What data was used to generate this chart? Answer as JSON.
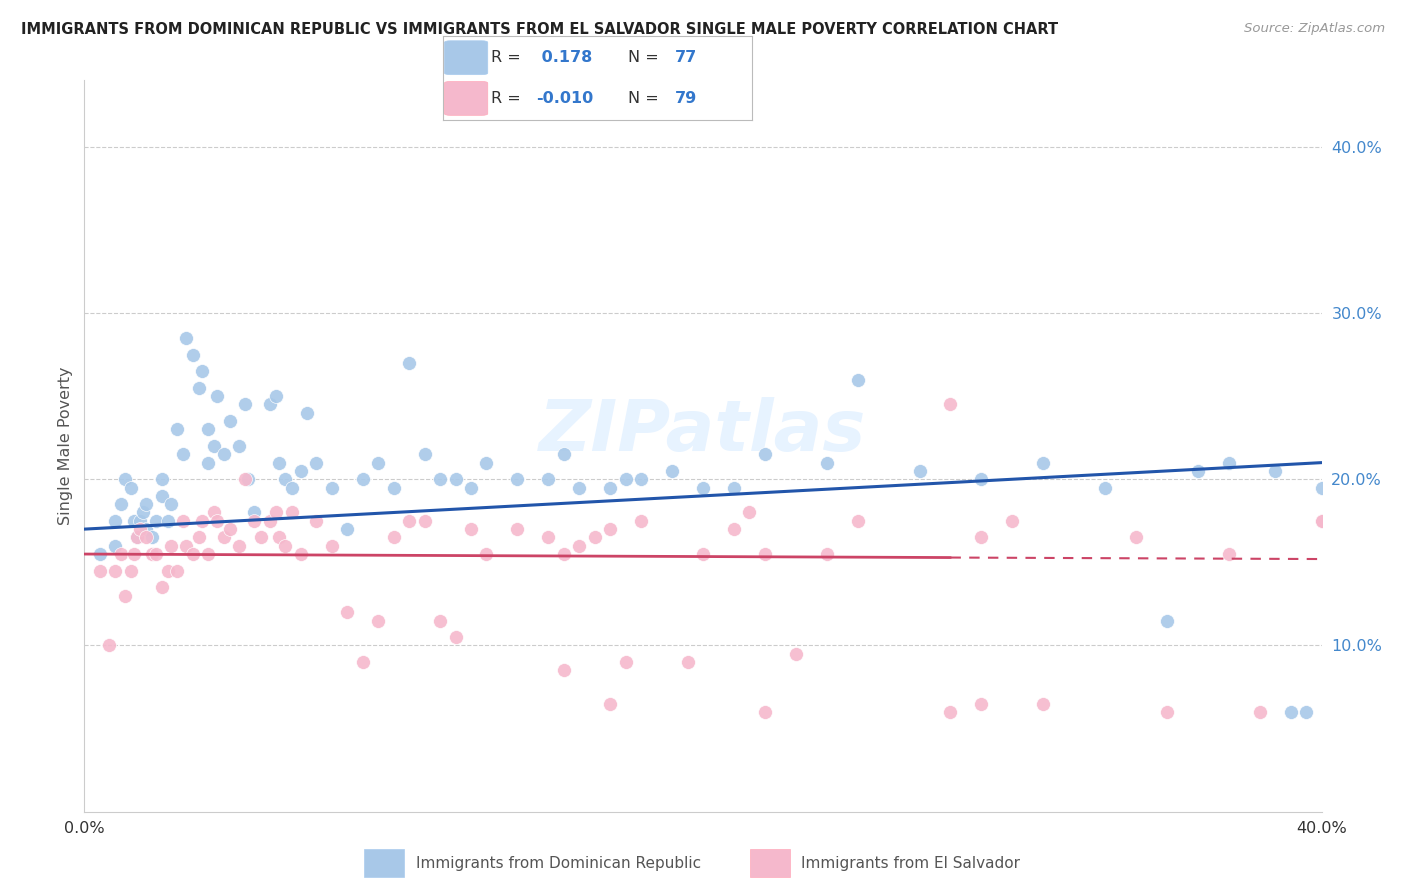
{
  "title": "IMMIGRANTS FROM DOMINICAN REPUBLIC VS IMMIGRANTS FROM EL SALVADOR SINGLE MALE POVERTY CORRELATION CHART",
  "source": "Source: ZipAtlas.com",
  "ylabel": "Single Male Poverty",
  "r_blue": 0.178,
  "n_blue": 77,
  "r_pink": -0.01,
  "n_pink": 79,
  "blue_scatter_color": "#a8c8e8",
  "pink_scatter_color": "#f5b8cc",
  "blue_line_color": "#2255aa",
  "pink_line_color": "#cc4466",
  "blue_line_start_y": 0.17,
  "blue_line_end_y": 0.21,
  "pink_line_start_y": 0.155,
  "pink_line_end_y": 0.152,
  "watermark": "ZIPatlas",
  "xlim": [
    0.0,
    0.4
  ],
  "ylim": [
    0.0,
    0.44
  ],
  "blue_x": [
    0.005,
    0.01,
    0.01,
    0.012,
    0.013,
    0.015,
    0.016,
    0.017,
    0.018,
    0.019,
    0.02,
    0.02,
    0.022,
    0.023,
    0.025,
    0.025,
    0.027,
    0.028,
    0.03,
    0.032,
    0.033,
    0.035,
    0.037,
    0.038,
    0.04,
    0.04,
    0.042,
    0.043,
    0.045,
    0.047,
    0.05,
    0.052,
    0.053,
    0.055,
    0.06,
    0.062,
    0.063,
    0.065,
    0.067,
    0.07,
    0.072,
    0.075,
    0.08,
    0.085,
    0.09,
    0.095,
    0.1,
    0.105,
    0.11,
    0.115,
    0.12,
    0.125,
    0.13,
    0.14,
    0.15,
    0.155,
    0.16,
    0.17,
    0.175,
    0.18,
    0.19,
    0.2,
    0.21,
    0.22,
    0.24,
    0.25,
    0.27,
    0.29,
    0.31,
    0.33,
    0.35,
    0.36,
    0.37,
    0.385,
    0.39,
    0.395,
    0.4
  ],
  "blue_y": [
    0.155,
    0.16,
    0.175,
    0.185,
    0.2,
    0.195,
    0.175,
    0.165,
    0.175,
    0.18,
    0.17,
    0.185,
    0.165,
    0.175,
    0.19,
    0.2,
    0.175,
    0.185,
    0.23,
    0.215,
    0.285,
    0.275,
    0.255,
    0.265,
    0.23,
    0.21,
    0.22,
    0.25,
    0.215,
    0.235,
    0.22,
    0.245,
    0.2,
    0.18,
    0.245,
    0.25,
    0.21,
    0.2,
    0.195,
    0.205,
    0.24,
    0.21,
    0.195,
    0.17,
    0.2,
    0.21,
    0.195,
    0.27,
    0.215,
    0.2,
    0.2,
    0.195,
    0.21,
    0.2,
    0.2,
    0.215,
    0.195,
    0.195,
    0.2,
    0.2,
    0.205,
    0.195,
    0.195,
    0.215,
    0.21,
    0.26,
    0.205,
    0.2,
    0.21,
    0.195,
    0.115,
    0.205,
    0.21,
    0.205,
    0.06,
    0.06,
    0.195
  ],
  "pink_x": [
    0.005,
    0.008,
    0.01,
    0.012,
    0.013,
    0.015,
    0.016,
    0.017,
    0.018,
    0.02,
    0.022,
    0.023,
    0.025,
    0.027,
    0.028,
    0.03,
    0.032,
    0.033,
    0.035,
    0.037,
    0.038,
    0.04,
    0.042,
    0.043,
    0.045,
    0.047,
    0.05,
    0.052,
    0.055,
    0.057,
    0.06,
    0.062,
    0.063,
    0.065,
    0.067,
    0.07,
    0.075,
    0.08,
    0.085,
    0.09,
    0.095,
    0.1,
    0.105,
    0.11,
    0.115,
    0.12,
    0.125,
    0.13,
    0.14,
    0.15,
    0.155,
    0.16,
    0.165,
    0.17,
    0.175,
    0.18,
    0.2,
    0.21,
    0.215,
    0.22,
    0.23,
    0.24,
    0.25,
    0.28,
    0.29,
    0.3,
    0.31,
    0.34,
    0.35,
    0.37,
    0.38,
    0.4,
    0.4,
    0.28,
    0.29,
    0.155,
    0.17,
    0.195,
    0.22
  ],
  "pink_y": [
    0.145,
    0.1,
    0.145,
    0.155,
    0.13,
    0.145,
    0.155,
    0.165,
    0.17,
    0.165,
    0.155,
    0.155,
    0.135,
    0.145,
    0.16,
    0.145,
    0.175,
    0.16,
    0.155,
    0.165,
    0.175,
    0.155,
    0.18,
    0.175,
    0.165,
    0.17,
    0.16,
    0.2,
    0.175,
    0.165,
    0.175,
    0.18,
    0.165,
    0.16,
    0.18,
    0.155,
    0.175,
    0.16,
    0.12,
    0.09,
    0.115,
    0.165,
    0.175,
    0.175,
    0.115,
    0.105,
    0.17,
    0.155,
    0.17,
    0.165,
    0.155,
    0.16,
    0.165,
    0.17,
    0.09,
    0.175,
    0.155,
    0.17,
    0.18,
    0.155,
    0.095,
    0.155,
    0.175,
    0.245,
    0.165,
    0.175,
    0.065,
    0.165,
    0.06,
    0.155,
    0.06,
    0.175,
    0.175,
    0.06,
    0.065,
    0.085,
    0.065,
    0.09,
    0.06
  ]
}
